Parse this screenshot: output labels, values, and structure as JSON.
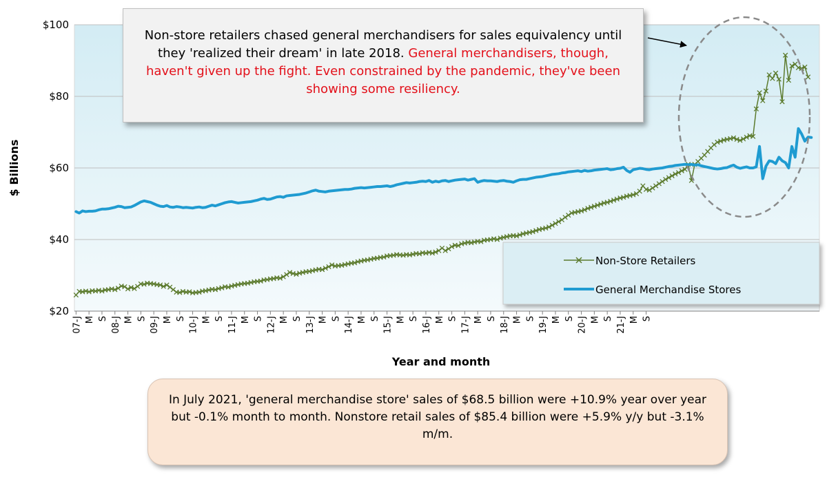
{
  "colors": {
    "plot_bg_top": "#d3ecf4",
    "plot_bg_bottom": "#f4fafc",
    "non_store": "#5b7a2c",
    "general_merch": "#1f9bd1",
    "annotation_red": "#e3101a",
    "callout_bg": "#fbe6d5",
    "legend_bg": "#dbeef4"
  },
  "top_annotation": {
    "black_text": "Non-store retailers chased general merchandisers for sales equivalency until they 'realized their dream' in late 2018.",
    "red_text": "General merchandisers, though, haven't given up the fight. Even constrained by the pandemic, they've been showing some resiliency."
  },
  "bottom_annotation": {
    "text": "In July 2021, 'general merchandise store' sales of $68.5 billion were +10.9% year over year but -0.1% month to month. Nonstore retail sales of $85.4 billion were +5.9% y/y but -3.1% m/m."
  },
  "chart_data": {
    "type": "line",
    "title": "",
    "xlabel": "Year and month",
    "ylabel": "$ Billions",
    "ylim": [
      20,
      100
    ],
    "yticks": [
      "$20",
      "$40",
      "$60",
      "$80",
      "$100"
    ],
    "ytick_values": [
      20,
      40,
      60,
      80,
      100
    ],
    "x_start": "2007-01",
    "x_end": "2021-07",
    "x_tick_labels": [
      "07-J",
      "M",
      "S",
      "08-J",
      "M",
      "S",
      "09-J",
      "M",
      "S",
      "10-J",
      "M",
      "S",
      "11-J",
      "M",
      "S",
      "12-J",
      "M",
      "S",
      "13-J",
      "M",
      "S",
      "14-J",
      "M",
      "S",
      "15-J",
      "M",
      "S",
      "16-J",
      "M",
      "S",
      "17-J",
      "M",
      "S",
      "18-J",
      "M",
      "S",
      "19-J",
      "M",
      "S",
      "20-J",
      "M",
      "S",
      "21-J",
      "M",
      "S"
    ],
    "legend_position": "bottom-right",
    "series": [
      {
        "name": "Non-Store Retailers",
        "marker": "x",
        "values": [
          24.5,
          25.5,
          25.4,
          25.6,
          25.4,
          25.7,
          25.6,
          25.8,
          25.6,
          25.9,
          26.0,
          26.2,
          26.0,
          26.4,
          27.0,
          26.8,
          26.2,
          26.6,
          26.3,
          26.9,
          27.6,
          27.5,
          27.8,
          27.7,
          27.6,
          27.4,
          27.3,
          26.9,
          27.3,
          26.7,
          26.0,
          25.3,
          25.2,
          25.5,
          25.3,
          25.4,
          25.1,
          25.2,
          25.3,
          25.6,
          25.7,
          25.9,
          26.1,
          26.0,
          26.3,
          26.5,
          26.8,
          26.7,
          27.0,
          27.2,
          27.4,
          27.6,
          27.7,
          27.8,
          28.0,
          28.2,
          28.3,
          28.4,
          28.7,
          28.8,
          29.0,
          29.1,
          29.3,
          29.2,
          29.6,
          30.2,
          30.8,
          30.5,
          30.3,
          30.6,
          30.8,
          31.0,
          31.1,
          31.3,
          31.5,
          31.7,
          31.6,
          32.0,
          32.4,
          32.9,
          32.6,
          32.7,
          32.8,
          33.0,
          33.2,
          33.4,
          33.5,
          33.8,
          34.0,
          34.2,
          34.3,
          34.5,
          34.7,
          34.8,
          35.0,
          35.1,
          35.4,
          35.5,
          35.6,
          35.8,
          35.7,
          35.6,
          35.8,
          35.7,
          35.9,
          36.1,
          36.0,
          36.3,
          36.2,
          36.4,
          36.2,
          36.5,
          36.9,
          37.6,
          36.9,
          37.4,
          38.0,
          38.4,
          38.3,
          38.8,
          39.0,
          39.2,
          39.1,
          39.3,
          39.5,
          39.4,
          39.8,
          39.9,
          40.0,
          40.2,
          40.0,
          40.4,
          40.6,
          40.8,
          41.0,
          41.1,
          41.0,
          41.3,
          41.6,
          41.8,
          42.0,
          42.2,
          42.5,
          42.8,
          43.0,
          43.2,
          43.5,
          44.0,
          44.5,
          45.0,
          45.5,
          46.2,
          46.8,
          47.4,
          47.6,
          47.8,
          48.0,
          48.3,
          48.7,
          49.0,
          49.3,
          49.6,
          49.9,
          50.2,
          50.4,
          50.7,
          51.0,
          51.3,
          51.6,
          51.8,
          52.1,
          52.3,
          52.5,
          52.8,
          53.5,
          55.0,
          54.0,
          53.8,
          54.4,
          55.0,
          55.6,
          56.2,
          56.8,
          57.3,
          57.8,
          58.3,
          58.7,
          59.2,
          59.6,
          61.0,
          56.5,
          61.0,
          61.8,
          62.7,
          63.6,
          64.6,
          65.6,
          66.5,
          67.2,
          67.5,
          67.8,
          68.0,
          68.2,
          68.4,
          68.0,
          67.7,
          68.1,
          68.6,
          69.0,
          68.8,
          76.5,
          81.0,
          78.8,
          81.5,
          86.0,
          85.0,
          86.5,
          84.8,
          78.5,
          91.5,
          84.5,
          88.5,
          89.0,
          88.0,
          87.8,
          88.2,
          85.4
        ]
      },
      {
        "name": "General Merchandise Stores",
        "marker": "none",
        "values": [
          47.8,
          47.4,
          48.0,
          47.8,
          47.9,
          47.9,
          48.0,
          48.3,
          48.5,
          48.5,
          48.6,
          48.8,
          49.0,
          49.3,
          49.2,
          48.9,
          49.0,
          49.1,
          49.5,
          50.0,
          50.5,
          50.8,
          50.6,
          50.4,
          50.0,
          49.6,
          49.3,
          49.2,
          49.5,
          49.1,
          49.0,
          49.2,
          49.1,
          48.9,
          49.0,
          48.9,
          48.8,
          49.0,
          49.1,
          48.9,
          49.0,
          49.3,
          49.6,
          49.4,
          49.7,
          50.0,
          50.3,
          50.5,
          50.6,
          50.4,
          50.2,
          50.3,
          50.4,
          50.5,
          50.6,
          50.8,
          51.0,
          51.3,
          51.5,
          51.2,
          51.3,
          51.6,
          51.9,
          52.0,
          51.8,
          52.2,
          52.3,
          52.4,
          52.5,
          52.6,
          52.8,
          53.0,
          53.3,
          53.6,
          53.8,
          53.5,
          53.4,
          53.3,
          53.5,
          53.6,
          53.7,
          53.8,
          53.9,
          54.0,
          54.0,
          54.1,
          54.3,
          54.4,
          54.5,
          54.4,
          54.5,
          54.6,
          54.7,
          54.8,
          54.8,
          54.9,
          55.0,
          54.8,
          55.0,
          55.3,
          55.5,
          55.7,
          55.9,
          55.8,
          55.9,
          56.0,
          56.2,
          56.3,
          56.2,
          56.5,
          56.0,
          56.3,
          56.1,
          56.4,
          56.5,
          56.2,
          56.4,
          56.6,
          56.7,
          56.8,
          56.9,
          56.6,
          56.8,
          57.0,
          56.0,
          56.3,
          56.5,
          56.4,
          56.4,
          56.3,
          56.2,
          56.4,
          56.5,
          56.3,
          56.2,
          56.0,
          56.4,
          56.7,
          56.8,
          56.8,
          57.0,
          57.2,
          57.4,
          57.5,
          57.6,
          57.8,
          58.0,
          58.2,
          58.3,
          58.4,
          58.6,
          58.7,
          58.9,
          59.0,
          59.1,
          59.2,
          59.0,
          59.3,
          59.1,
          59.2,
          59.4,
          59.5,
          59.6,
          59.7,
          59.8,
          59.5,
          59.6,
          59.8,
          59.9,
          60.2,
          59.3,
          58.8,
          59.5,
          59.7,
          59.9,
          59.8,
          59.6,
          59.5,
          59.7,
          59.8,
          59.9,
          60.0,
          60.2,
          60.4,
          60.5,
          60.7,
          60.8,
          60.9,
          61.0,
          60.9,
          61.0,
          60.8,
          60.9,
          60.6,
          60.4,
          60.2,
          60.0,
          59.8,
          59.7,
          59.8,
          60.0,
          60.1,
          60.5,
          60.8,
          60.2,
          59.9,
          60.1,
          60.3,
          60.0,
          60.0,
          60.3,
          66.0,
          57.0,
          60.5,
          62.0,
          61.8,
          61.2,
          63.0,
          62.0,
          61.5,
          60.0,
          66.0,
          63.0,
          71.0,
          69.5,
          67.5,
          68.6,
          68.5
        ]
      }
    ]
  }
}
